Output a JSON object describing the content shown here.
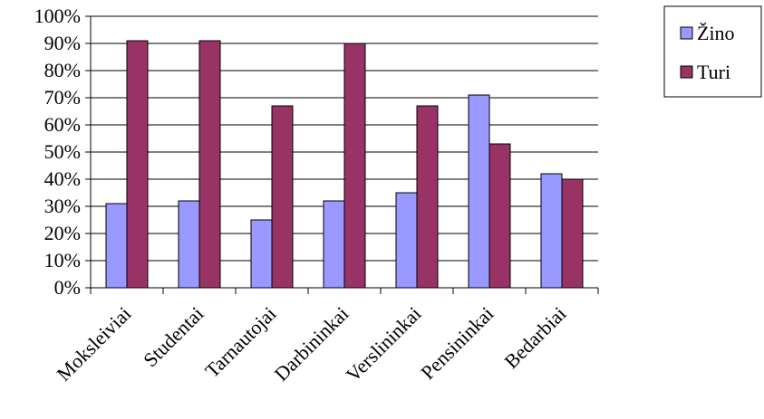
{
  "chart_data": {
    "type": "bar",
    "categories": [
      "Moksleiviai",
      "Studentai",
      "Tarnautojai",
      "Darbininkai",
      "Verslininkai",
      "Pensininkai",
      "Bedarbiai"
    ],
    "series": [
      {
        "name": "Žino",
        "color": "#9999ff",
        "values": [
          31,
          32,
          25,
          32,
          35,
          71,
          42
        ]
      },
      {
        "name": "Turi",
        "color": "#993366",
        "values": [
          91,
          91,
          67,
          90,
          67,
          53,
          40
        ]
      }
    ],
    "ylim": [
      0,
      100
    ],
    "yticks": [
      "0%",
      "10%",
      "20%",
      "30%",
      "40%",
      "50%",
      "60%",
      "70%",
      "80%",
      "90%",
      "100%"
    ],
    "grid": true,
    "legend_position": "top-right"
  }
}
